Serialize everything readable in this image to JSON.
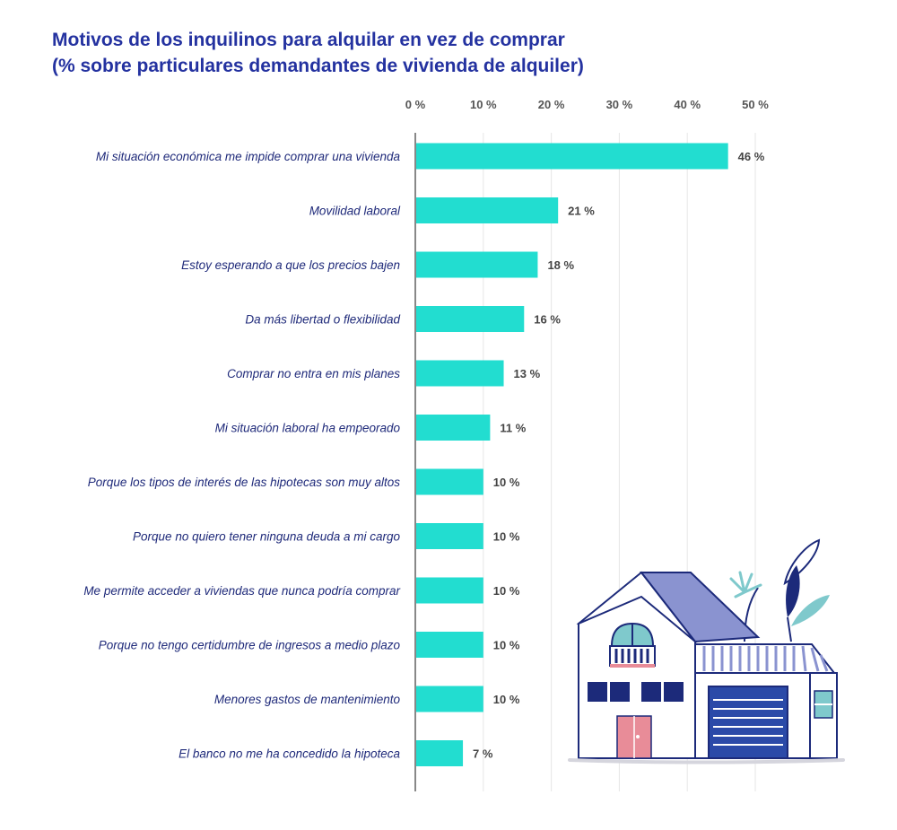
{
  "title": {
    "line1": "Motivos de los inquilinos para alquilar en vez de comprar",
    "line2": "(% sobre particulares demandantes de vivienda de alquiler)"
  },
  "chart_data": {
    "type": "bar",
    "orientation": "horizontal",
    "categories": [
      "Mi situación económica me impide comprar una vivienda",
      "Movilidad laboral",
      "Estoy esperando a que los precios bajen",
      "Da más libertad o flexibilidad",
      "Comprar no entra en mis planes",
      "Mi situación laboral ha empeorado",
      "Porque los tipos de interés de las hipotecas son muy altos",
      "Porque no quiero tener ninguna deuda a mi cargo",
      "Me permite acceder a viviendas que nunca podría comprar",
      "Porque no tengo certidumbre de ingresos a medio plazo",
      "Menores gastos de mantenimiento",
      "El banco no me ha concedido la hipoteca"
    ],
    "values": [
      46,
      21,
      18,
      16,
      13,
      11,
      10,
      10,
      10,
      10,
      10,
      7
    ],
    "value_labels": [
      "46 %",
      "21 %",
      "18 %",
      "16 %",
      "13 %",
      "11 %",
      "10 %",
      "10 %",
      "10 %",
      "10 %",
      "10 %",
      "7 %"
    ],
    "x_ticks": [
      0,
      10,
      20,
      30,
      40,
      50
    ],
    "x_tick_labels": [
      "0 %",
      "10 %",
      "20 %",
      "30 %",
      "40 %",
      "50 %"
    ],
    "xlim": [
      0,
      50
    ],
    "axis_position": "top",
    "grid": true,
    "colors": {
      "bar": "#22ddd0",
      "title": "#2432a0",
      "category_text": "#1f2a7a",
      "grid": "#e6e6e6",
      "axis": "#888888"
    }
  },
  "illustration": {
    "icon": "house-illustration-icon"
  }
}
